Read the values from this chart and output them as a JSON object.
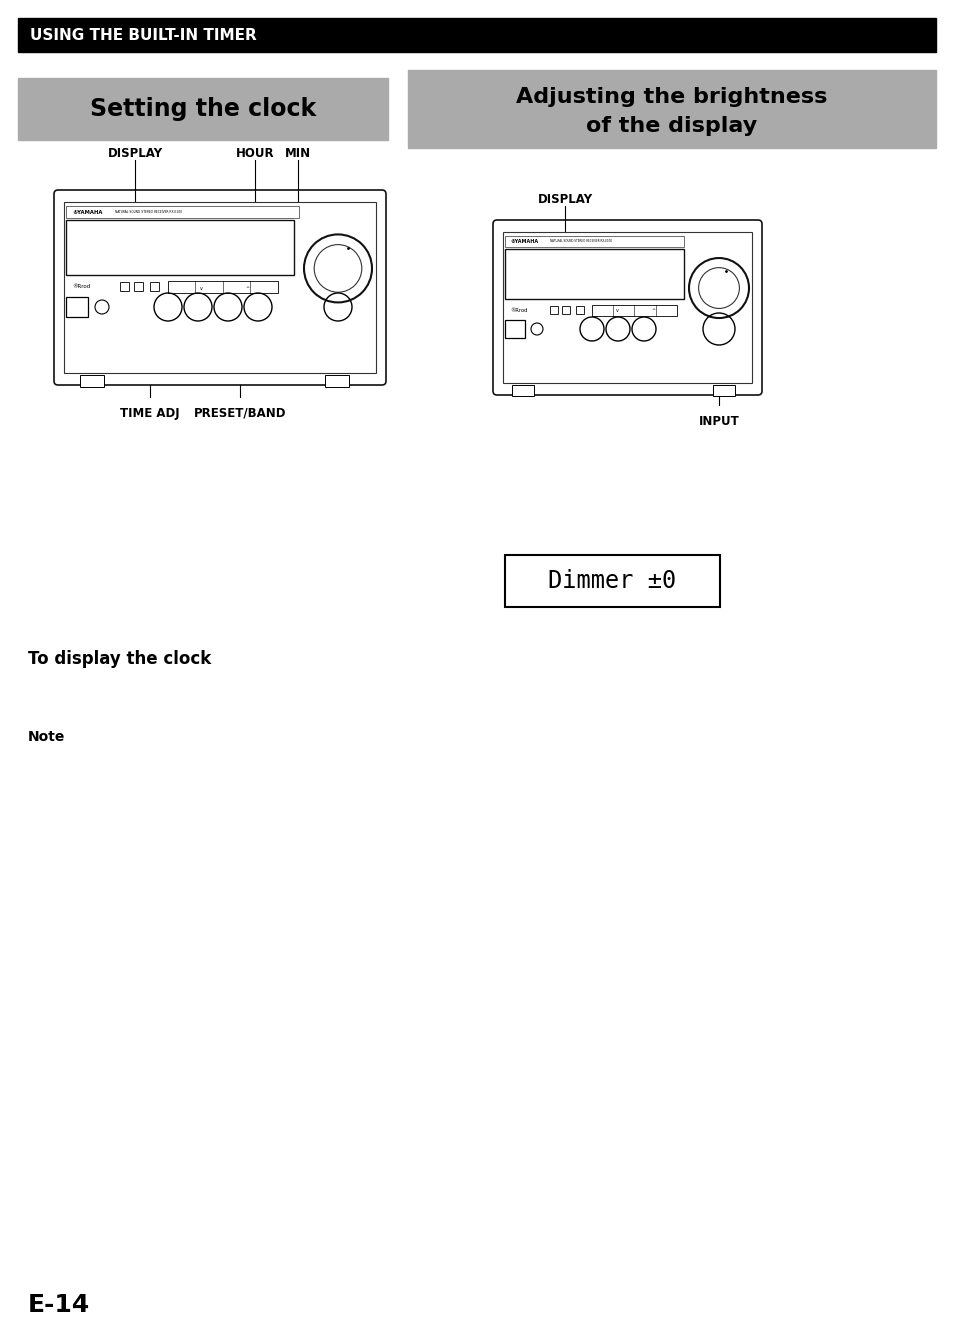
{
  "bg_color": "#ffffff",
  "header_bg": "#000000",
  "header_text": "USING THE BUILT-IN TIMER",
  "header_text_color": "#ffffff",
  "section1_title": "Setting the clock",
  "section2_line1": "Adjusting the brightness",
  "section2_line2": "of the display",
  "section_bg": "#aaaaaa",
  "label_display_left": "DISPLAY",
  "label_hour": "HOUR",
  "label_min": "MIN",
  "label_time_adj": "TIME ADJ",
  "label_preset_band": "PRESET/BAND",
  "label_display_right": "DISPLAY",
  "label_input": "INPUT",
  "dimmer_text": "Dimmer ±0",
  "bottom_heading": "To display the clock",
  "note_label": "Note",
  "page_number": "E-14"
}
